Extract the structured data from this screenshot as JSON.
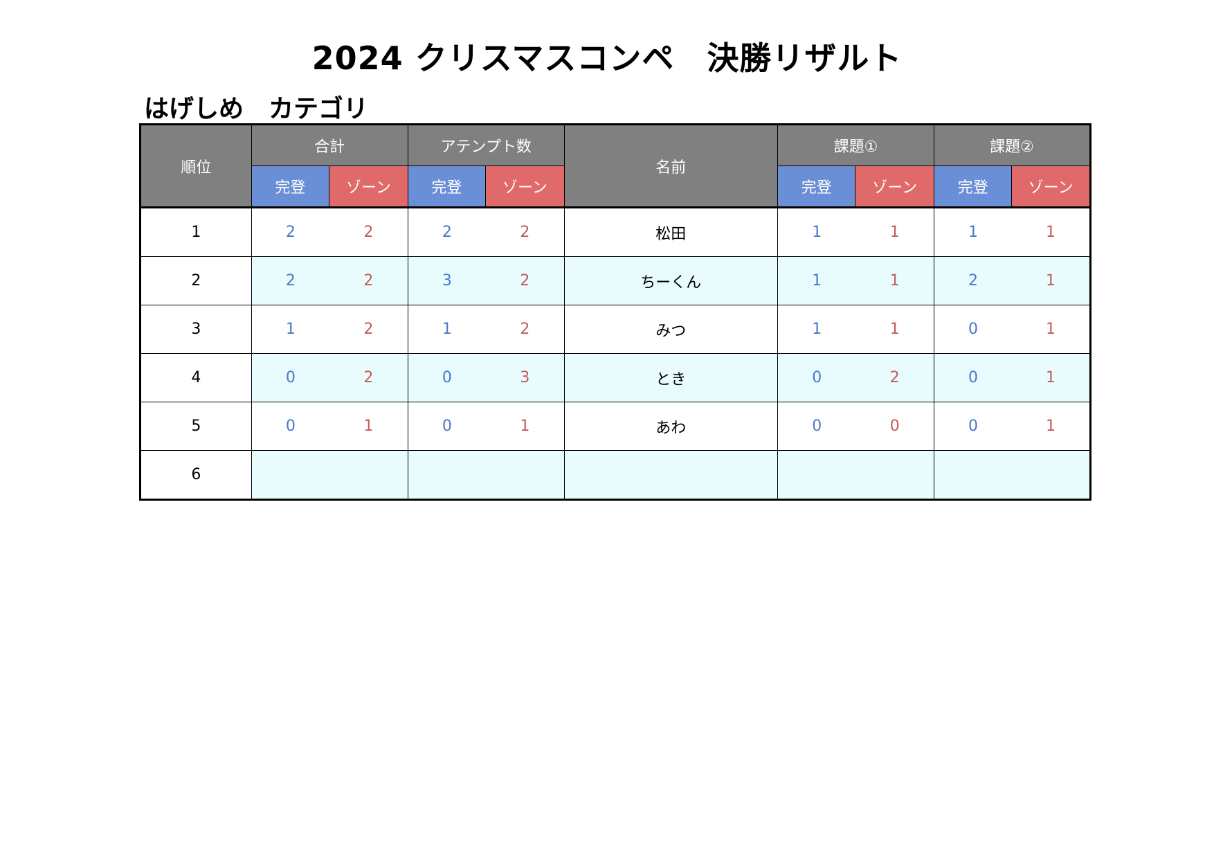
{
  "title": "2024 クリスマスコンペ　決勝リザルト",
  "category": "はげしめ　カテゴリ",
  "headers": {
    "rank": "順位",
    "total": "合計",
    "attempts": "アテンプト数",
    "name": "名前",
    "problem1": "課題①",
    "problem2": "課題②",
    "top": "完登",
    "zone": "ゾーン"
  },
  "colors": {
    "header_gray": "#808080",
    "top_blue": "#6b8fd6",
    "zone_red": "#e06a6a",
    "row_shade": "#e8fbfd"
  },
  "rows": [
    {
      "rank": "1",
      "total_top": "2",
      "total_zone": "2",
      "att_top": "2",
      "att_zone": "2",
      "name": "松田",
      "p1_top": "1",
      "p1_zone": "1",
      "p2_top": "1",
      "p2_zone": "1"
    },
    {
      "rank": "2",
      "total_top": "2",
      "total_zone": "2",
      "att_top": "3",
      "att_zone": "2",
      "name": "ちーくん",
      "p1_top": "1",
      "p1_zone": "1",
      "p2_top": "2",
      "p2_zone": "1"
    },
    {
      "rank": "3",
      "total_top": "1",
      "total_zone": "2",
      "att_top": "1",
      "att_zone": "2",
      "name": "みつ",
      "p1_top": "1",
      "p1_zone": "1",
      "p2_top": "0",
      "p2_zone": "1"
    },
    {
      "rank": "4",
      "total_top": "0",
      "total_zone": "2",
      "att_top": "0",
      "att_zone": "3",
      "name": "とき",
      "p1_top": "0",
      "p1_zone": "2",
      "p2_top": "0",
      "p2_zone": "1"
    },
    {
      "rank": "5",
      "total_top": "0",
      "total_zone": "1",
      "att_top": "0",
      "att_zone": "1",
      "name": "あわ",
      "p1_top": "0",
      "p1_zone": "0",
      "p2_top": "0",
      "p2_zone": "1"
    },
    {
      "rank": "6",
      "total_top": "",
      "total_zone": "",
      "att_top": "",
      "att_zone": "",
      "name": "",
      "p1_top": "",
      "p1_zone": "",
      "p2_top": "",
      "p2_zone": ""
    }
  ]
}
